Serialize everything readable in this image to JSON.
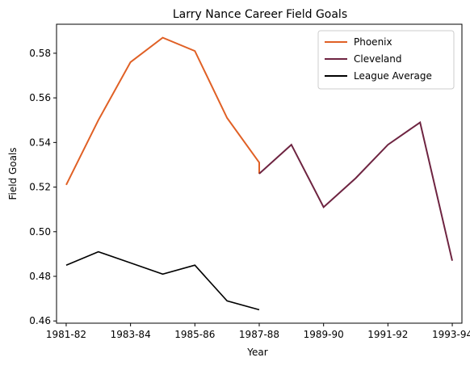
{
  "chart_data": {
    "type": "line",
    "title": "Larry Nance Career Field Goals",
    "xlabel": "Year",
    "ylabel": "Field Goals",
    "x_tick_labels": [
      "1981-82",
      "1983-84",
      "1985-86",
      "1987-88",
      "1989-90",
      "1991-92",
      "1993-94"
    ],
    "x_tick_index": [
      0,
      2,
      4,
      6,
      8,
      10,
      12
    ],
    "xlim": [
      -0.3,
      12.3
    ],
    "ylim": [
      0.459,
      0.593
    ],
    "y_ticks": [
      0.46,
      0.48,
      0.5,
      0.52,
      0.54,
      0.56,
      0.58
    ],
    "y_tick_labels": [
      "0.46",
      "0.48",
      "0.50",
      "0.52",
      "0.54",
      "0.56",
      "0.58"
    ],
    "legend_position": "top-right",
    "grid": false,
    "series": [
      {
        "name": "Phoenix",
        "color": "#e06025",
        "x": [
          0,
          1,
          2,
          3,
          4,
          5,
          6,
          6
        ],
        "values": [
          0.521,
          0.55,
          0.576,
          0.587,
          0.581,
          0.551,
          0.531,
          0.526
        ]
      },
      {
        "name": "Cleveland",
        "color": "#6e2441",
        "x": [
          6,
          7,
          8,
          9,
          10,
          11,
          12
        ],
        "values": [
          0.526,
          0.539,
          0.511,
          0.524,
          0.539,
          0.549,
          0.487
        ]
      },
      {
        "name": "League Average",
        "color": "#000000",
        "x": [
          0,
          1,
          2,
          3,
          4,
          5,
          6
        ],
        "values": [
          0.485,
          0.491,
          0.486,
          0.481,
          0.485,
          0.469,
          0.465
        ]
      }
    ]
  }
}
